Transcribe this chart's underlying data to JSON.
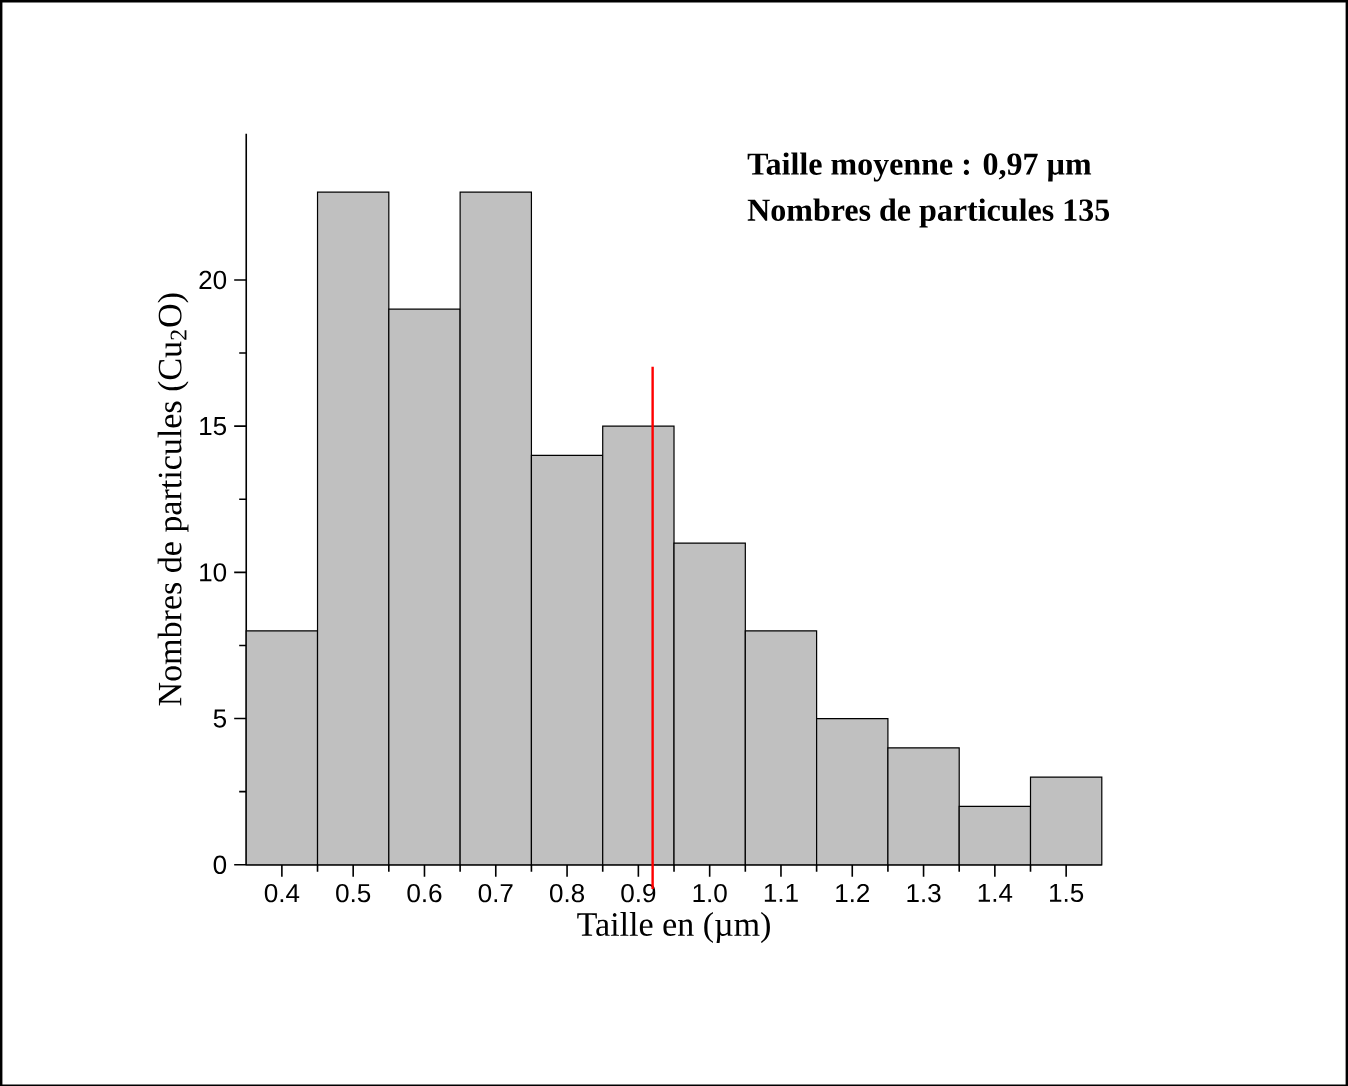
{
  "chart_data": {
    "type": "histogram",
    "xlabel": "Taille en (µm)",
    "ylabel": "Nombres de particules (Cu$_{2}$O)",
    "annotations": [
      "Taille moyenne : 0,97 µm",
      "Nombres de particules 135"
    ],
    "bins": [
      0.35,
      0.45,
      0.55,
      0.65,
      0.75,
      0.85,
      0.95,
      1.05,
      1.15,
      1.25,
      1.35,
      1.45,
      1.55
    ],
    "values": [
      8,
      23,
      19,
      23,
      14,
      15,
      11,
      8,
      5,
      4,
      2,
      3
    ],
    "color": "#c0c0c0",
    "xlim": [
      0.35,
      1.55
    ],
    "xticks": [
      0.4,
      0.5,
      0.6,
      0.7,
      0.8,
      0.9,
      {
        "value": 1.0,
        "label": "1.0"
      },
      1.1,
      1.2,
      1.3,
      1.4,
      1.5
    ],
    "ylim": [
      0,
      25
    ],
    "yticks": [
      0,
      5,
      10,
      15,
      20
    ],
    "ref_lines": [
      {
        "axis": "x",
        "value": 0.92,
        "color": "#ff0000"
      }
    ]
  }
}
